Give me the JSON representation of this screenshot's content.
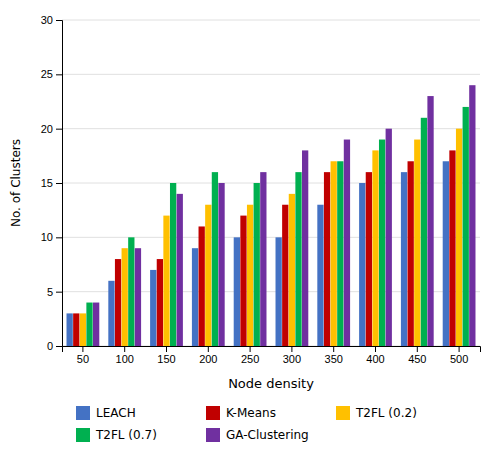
{
  "chart_data": {
    "type": "bar",
    "categories": [
      "50",
      "100",
      "150",
      "200",
      "250",
      "300",
      "350",
      "400",
      "450",
      "500"
    ],
    "series": [
      {
        "name": "LEACH",
        "color": "#4472c4",
        "values": [
          3,
          6,
          7,
          9,
          10,
          10,
          13,
          15,
          16,
          17
        ]
      },
      {
        "name": "K-Means",
        "color": "#c00000",
        "values": [
          3,
          8,
          8,
          11,
          12,
          13,
          16,
          16,
          17,
          18
        ]
      },
      {
        "name": "T2FL (0.2)",
        "color": "#ffc000",
        "values": [
          3,
          9,
          12,
          13,
          13,
          14,
          17,
          18,
          19,
          20
        ]
      },
      {
        "name": "T2FL (0.7)",
        "color": "#00b050",
        "values": [
          4,
          10,
          15,
          16,
          15,
          16,
          17,
          19,
          21,
          22
        ]
      },
      {
        "name": "GA-Clustering",
        "color": "#7030a0",
        "values": [
          4,
          9,
          14,
          15,
          16,
          18,
          19,
          20,
          23,
          24
        ]
      }
    ],
    "xlabel": "Node density",
    "ylabel": "No. of Clusters",
    "ylim": [
      0,
      30
    ],
    "yticks": [
      0,
      5,
      10,
      15,
      20,
      25,
      30
    ],
    "grid": true,
    "legend": "bottom"
  }
}
